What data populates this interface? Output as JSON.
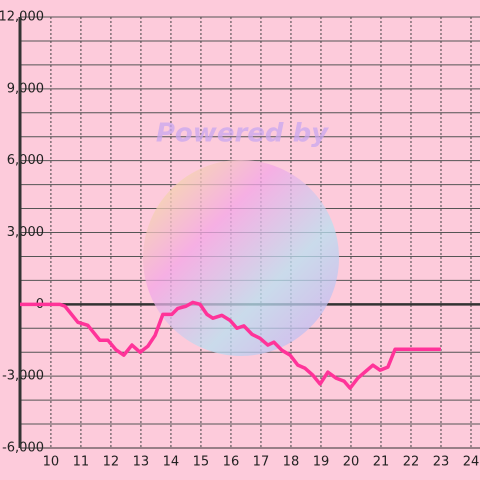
{
  "chart_data": {
    "type": "line",
    "watermark": "Powered by",
    "x": [
      8.97,
      10.3,
      10.47,
      10.9,
      11.23,
      11.63,
      11.9,
      12.17,
      12.43,
      12.7,
      12.97,
      13.23,
      13.47,
      13.73,
      14.03,
      14.23,
      14.5,
      14.73,
      14.97,
      15.2,
      15.4,
      15.7,
      15.97,
      16.2,
      16.43,
      16.7,
      16.97,
      17.23,
      17.43,
      17.7,
      17.97,
      18.23,
      18.47,
      18.73,
      18.97,
      19.23,
      19.5,
      19.77,
      19.97,
      20.23,
      20.5,
      20.73,
      20.97,
      21.23,
      21.47,
      23
    ],
    "series": [
      {
        "color": "#ff3399",
        "values": [
          0,
          0,
          -80,
          -750,
          -875,
          -1500,
          -1500,
          -1900,
          -2125,
          -1700,
          -2000,
          -1750,
          -1300,
          -420,
          -420,
          -170,
          -80,
          80,
          0,
          -420,
          -580,
          -460,
          -670,
          -1000,
          -900,
          -1250,
          -1420,
          -1700,
          -1580,
          -1920,
          -2120,
          -2540,
          -2670,
          -2960,
          -3330,
          -2830,
          -3080,
          -3210,
          -3500,
          -3080,
          -2790,
          -2540,
          -2750,
          -2620,
          -1875,
          -1875
        ]
      }
    ],
    "xlim": [
      8.97,
      24.3
    ],
    "xticks": [
      10,
      11,
      12,
      13,
      14,
      15,
      16,
      17,
      18,
      19,
      20,
      21,
      22,
      23,
      24
    ],
    "ylim": [
      -6000,
      12000
    ],
    "yticks": [
      {
        "value": -6000,
        "label": "-6,000"
      },
      {
        "value": -3000,
        "label": "-3,000"
      },
      0,
      {
        "value": 3000,
        "label": "3,000"
      },
      {
        "value": 6000,
        "label": "6,000"
      },
      {
        "value": 9000,
        "label": "9,000"
      },
      {
        "value": 12000,
        "label": "12,000"
      }
    ],
    "grid": true
  }
}
